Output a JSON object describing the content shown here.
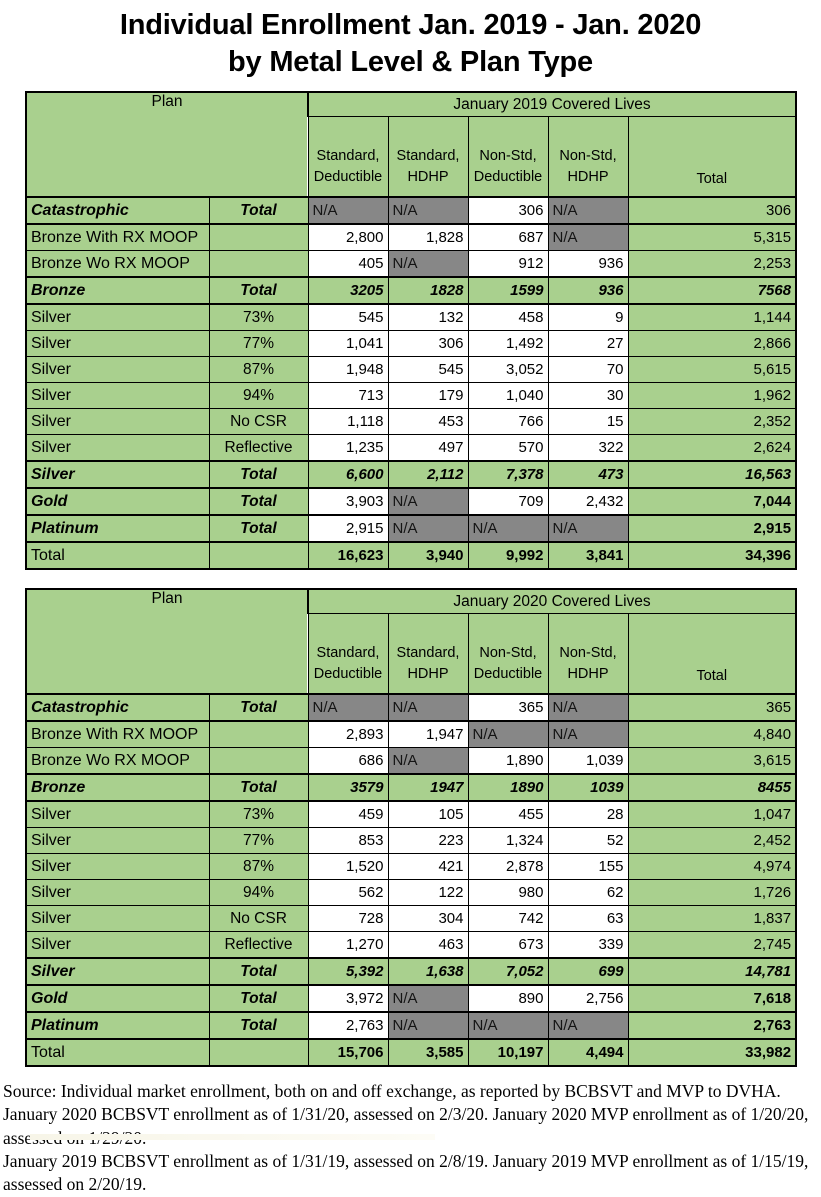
{
  "title": {
    "line1": "Individual Enrollment Jan. 2019 - Jan. 2020",
    "line2": "by Metal Level & Plan Type"
  },
  "colors": {
    "table_green": "#a9d08e",
    "na_gray": "#878787",
    "border": "#000000",
    "page_bg": "#ffffff"
  },
  "tables": [
    {
      "plan_header": "Plan",
      "covered_header": "January 2019 Covered Lives",
      "columns": [
        "Standard, Deductible",
        "Standard, HDHP",
        "Non-Std, Deductible",
        "Non-Std, HDHP",
        "Total"
      ],
      "rows": [
        {
          "name": "Catastrophic",
          "sub": "Total",
          "style": "summary",
          "cells": [
            {
              "v": "N/A",
              "bg": "x"
            },
            {
              "v": "N/A",
              "bg": "x"
            },
            {
              "v": "306",
              "bg": "w"
            },
            {
              "v": "N/A",
              "bg": "x"
            },
            {
              "v": "306",
              "bg": "g"
            }
          ]
        },
        {
          "name": "Bronze With RX MOOP",
          "sub": "",
          "style": "detail",
          "cells": [
            {
              "v": "2,800",
              "bg": "w"
            },
            {
              "v": "1,828",
              "bg": "w"
            },
            {
              "v": "687",
              "bg": "w"
            },
            {
              "v": "N/A",
              "bg": "x"
            },
            {
              "v": "5,315",
              "bg": "g"
            }
          ]
        },
        {
          "name": "Bronze Wo RX MOOP",
          "sub": "",
          "style": "detail",
          "cells": [
            {
              "v": "405",
              "bg": "w"
            },
            {
              "v": "N/A",
              "bg": "x"
            },
            {
              "v": "912",
              "bg": "w"
            },
            {
              "v": "936",
              "bg": "w"
            },
            {
              "v": "2,253",
              "bg": "g"
            }
          ]
        },
        {
          "name": "Bronze",
          "sub": "Total",
          "style": "summary",
          "cells": [
            {
              "v": "3205",
              "bg": "g",
              "fs": "bi"
            },
            {
              "v": "1828",
              "bg": "g",
              "fs": "bi"
            },
            {
              "v": "1599",
              "bg": "g",
              "fs": "bi"
            },
            {
              "v": "936",
              "bg": "g",
              "fs": "bi"
            },
            {
              "v": "7568",
              "bg": "g",
              "fs": "bi"
            }
          ]
        },
        {
          "name": "Silver",
          "sub": "73%",
          "style": "detail",
          "cells": [
            {
              "v": "545",
              "bg": "w"
            },
            {
              "v": "132",
              "bg": "w"
            },
            {
              "v": "458",
              "bg": "w"
            },
            {
              "v": "9",
              "bg": "w"
            },
            {
              "v": "1,144",
              "bg": "g"
            }
          ]
        },
        {
          "name": "Silver",
          "sub": "77%",
          "style": "detail",
          "cells": [
            {
              "v": "1,041",
              "bg": "w"
            },
            {
              "v": "306",
              "bg": "w"
            },
            {
              "v": "1,492",
              "bg": "w"
            },
            {
              "v": "27",
              "bg": "w"
            },
            {
              "v": "2,866",
              "bg": "g"
            }
          ]
        },
        {
          "name": "Silver",
          "sub": "87%",
          "style": "detail",
          "cells": [
            {
              "v": "1,948",
              "bg": "w"
            },
            {
              "v": "545",
              "bg": "w"
            },
            {
              "v": "3,052",
              "bg": "w"
            },
            {
              "v": "70",
              "bg": "w"
            },
            {
              "v": "5,615",
              "bg": "g"
            }
          ]
        },
        {
          "name": "Silver",
          "sub": "94%",
          "style": "detail",
          "cells": [
            {
              "v": "713",
              "bg": "w"
            },
            {
              "v": "179",
              "bg": "w"
            },
            {
              "v": "1,040",
              "bg": "w"
            },
            {
              "v": "30",
              "bg": "w"
            },
            {
              "v": "1,962",
              "bg": "g"
            }
          ]
        },
        {
          "name": "Silver",
          "sub": "No CSR",
          "style": "detail",
          "cells": [
            {
              "v": "1,118",
              "bg": "w"
            },
            {
              "v": "453",
              "bg": "w"
            },
            {
              "v": "766",
              "bg": "w"
            },
            {
              "v": "15",
              "bg": "w"
            },
            {
              "v": "2,352",
              "bg": "g"
            }
          ]
        },
        {
          "name": "Silver",
          "sub": "Reflective",
          "style": "detail",
          "cells": [
            {
              "v": "1,235",
              "bg": "w"
            },
            {
              "v": "497",
              "bg": "w"
            },
            {
              "v": "570",
              "bg": "w"
            },
            {
              "v": "322",
              "bg": "w"
            },
            {
              "v": "2,624",
              "bg": "g"
            }
          ]
        },
        {
          "name": "Silver",
          "sub": "Total",
          "style": "summary",
          "cells": [
            {
              "v": "6,600",
              "bg": "g",
              "fs": "bi"
            },
            {
              "v": "2,112",
              "bg": "g",
              "fs": "bi"
            },
            {
              "v": "7,378",
              "bg": "g",
              "fs": "bi"
            },
            {
              "v": "473",
              "bg": "g",
              "fs": "bi"
            },
            {
              "v": "16,563",
              "bg": "g",
              "fs": "bi"
            }
          ]
        },
        {
          "name": "Gold",
          "sub": "Total",
          "style": "summary",
          "cells": [
            {
              "v": "3,903",
              "bg": "w"
            },
            {
              "v": "N/A",
              "bg": "x"
            },
            {
              "v": "709",
              "bg": "w"
            },
            {
              "v": "2,432",
              "bg": "w"
            },
            {
              "v": "7,044",
              "bg": "g",
              "fs": "b"
            }
          ]
        },
        {
          "name": "Platinum",
          "sub": "Total",
          "style": "summary",
          "cells": [
            {
              "v": "2,915",
              "bg": "w"
            },
            {
              "v": "N/A",
              "bg": "x"
            },
            {
              "v": "N/A",
              "bg": "x"
            },
            {
              "v": "N/A",
              "bg": "x"
            },
            {
              "v": "2,915",
              "bg": "g",
              "fs": "b"
            }
          ]
        },
        {
          "name": "Total",
          "sub": "",
          "style": "grand",
          "cells": [
            {
              "v": "16,623",
              "bg": "g",
              "fs": "b"
            },
            {
              "v": "3,940",
              "bg": "g",
              "fs": "b"
            },
            {
              "v": "9,992",
              "bg": "g",
              "fs": "b"
            },
            {
              "v": "3,841",
              "bg": "g",
              "fs": "b"
            },
            {
              "v": "34,396",
              "bg": "g",
              "fs": "b"
            }
          ]
        }
      ]
    },
    {
      "plan_header": "Plan",
      "covered_header": "January 2020 Covered Lives",
      "columns": [
        "Standard, Deductible",
        "Standard, HDHP",
        "Non-Std, Deductible",
        "Non-Std, HDHP",
        "Total"
      ],
      "rows": [
        {
          "name": "Catastrophic",
          "sub": "Total",
          "style": "summary",
          "cells": [
            {
              "v": "N/A",
              "bg": "x"
            },
            {
              "v": "N/A",
              "bg": "x"
            },
            {
              "v": "365",
              "bg": "w"
            },
            {
              "v": "N/A",
              "bg": "x"
            },
            {
              "v": "365",
              "bg": "g"
            }
          ]
        },
        {
          "name": "Bronze With RX MOOP",
          "sub": "",
          "style": "detail",
          "cells": [
            {
              "v": "2,893",
              "bg": "w"
            },
            {
              "v": "1,947",
              "bg": "w"
            },
            {
              "v": "N/A",
              "bg": "x"
            },
            {
              "v": "N/A",
              "bg": "x"
            },
            {
              "v": "4,840",
              "bg": "g"
            }
          ]
        },
        {
          "name": "Bronze Wo RX MOOP",
          "sub": "",
          "style": "detail",
          "cells": [
            {
              "v": "686",
              "bg": "w"
            },
            {
              "v": "N/A",
              "bg": "x"
            },
            {
              "v": "1,890",
              "bg": "w"
            },
            {
              "v": "1,039",
              "bg": "w"
            },
            {
              "v": "3,615",
              "bg": "g"
            }
          ]
        },
        {
          "name": "Bronze",
          "sub": "Total",
          "style": "summary",
          "cells": [
            {
              "v": "3579",
              "bg": "g",
              "fs": "bi"
            },
            {
              "v": "1947",
              "bg": "g",
              "fs": "bi"
            },
            {
              "v": "1890",
              "bg": "g",
              "fs": "bi"
            },
            {
              "v": "1039",
              "bg": "g",
              "fs": "bi"
            },
            {
              "v": "8455",
              "bg": "g",
              "fs": "bi"
            }
          ]
        },
        {
          "name": "Silver",
          "sub": "73%",
          "style": "detail",
          "cells": [
            {
              "v": "459",
              "bg": "w"
            },
            {
              "v": "105",
              "bg": "w"
            },
            {
              "v": "455",
              "bg": "w"
            },
            {
              "v": "28",
              "bg": "w"
            },
            {
              "v": "1,047",
              "bg": "g"
            }
          ]
        },
        {
          "name": "Silver",
          "sub": "77%",
          "style": "detail",
          "cells": [
            {
              "v": "853",
              "bg": "w"
            },
            {
              "v": "223",
              "bg": "w"
            },
            {
              "v": "1,324",
              "bg": "w"
            },
            {
              "v": "52",
              "bg": "w"
            },
            {
              "v": "2,452",
              "bg": "g"
            }
          ]
        },
        {
          "name": "Silver",
          "sub": "87%",
          "style": "detail",
          "cells": [
            {
              "v": "1,520",
              "bg": "w"
            },
            {
              "v": "421",
              "bg": "w"
            },
            {
              "v": "2,878",
              "bg": "w"
            },
            {
              "v": "155",
              "bg": "w"
            },
            {
              "v": "4,974",
              "bg": "g"
            }
          ]
        },
        {
          "name": "Silver",
          "sub": "94%",
          "style": "detail",
          "cells": [
            {
              "v": "562",
              "bg": "w"
            },
            {
              "v": "122",
              "bg": "w"
            },
            {
              "v": "980",
              "bg": "w"
            },
            {
              "v": "62",
              "bg": "w"
            },
            {
              "v": "1,726",
              "bg": "g"
            }
          ]
        },
        {
          "name": "Silver",
          "sub": "No CSR",
          "style": "detail",
          "cells": [
            {
              "v": "728",
              "bg": "w"
            },
            {
              "v": "304",
              "bg": "w"
            },
            {
              "v": "742",
              "bg": "w"
            },
            {
              "v": "63",
              "bg": "w"
            },
            {
              "v": "1,837",
              "bg": "g"
            }
          ]
        },
        {
          "name": "Silver",
          "sub": "Reflective",
          "style": "detail",
          "cells": [
            {
              "v": "1,270",
              "bg": "w"
            },
            {
              "v": "463",
              "bg": "w"
            },
            {
              "v": "673",
              "bg": "w"
            },
            {
              "v": "339",
              "bg": "w"
            },
            {
              "v": "2,745",
              "bg": "g"
            }
          ]
        },
        {
          "name": "Silver",
          "sub": "Total",
          "style": "summary",
          "cells": [
            {
              "v": "5,392",
              "bg": "g",
              "fs": "bi"
            },
            {
              "v": "1,638",
              "bg": "g",
              "fs": "bi"
            },
            {
              "v": "7,052",
              "bg": "g",
              "fs": "bi"
            },
            {
              "v": "699",
              "bg": "g",
              "fs": "bi"
            },
            {
              "v": "14,781",
              "bg": "g",
              "fs": "bi"
            }
          ]
        },
        {
          "name": "Gold",
          "sub": "Total",
          "style": "summary",
          "cells": [
            {
              "v": "3,972",
              "bg": "w"
            },
            {
              "v": "N/A",
              "bg": "x"
            },
            {
              "v": "890",
              "bg": "w"
            },
            {
              "v": "2,756",
              "bg": "w"
            },
            {
              "v": "7,618",
              "bg": "g",
              "fs": "b"
            }
          ]
        },
        {
          "name": "Platinum",
          "sub": "Total",
          "style": "summary",
          "cells": [
            {
              "v": "2,763",
              "bg": "w"
            },
            {
              "v": "N/A",
              "bg": "x"
            },
            {
              "v": "N/A",
              "bg": "x"
            },
            {
              "v": "N/A",
              "bg": "x"
            },
            {
              "v": "2,763",
              "bg": "g",
              "fs": "b"
            }
          ]
        },
        {
          "name": "Total",
          "sub": "",
          "style": "grand",
          "cells": [
            {
              "v": "15,706",
              "bg": "g",
              "fs": "b"
            },
            {
              "v": "3,585",
              "bg": "g",
              "fs": "b"
            },
            {
              "v": "10,197",
              "bg": "g",
              "fs": "b"
            },
            {
              "v": "4,494",
              "bg": "g",
              "fs": "b"
            },
            {
              "v": "33,982",
              "bg": "g",
              "fs": "b"
            }
          ]
        }
      ]
    }
  ],
  "footer": {
    "lines": [
      "Source: Individual market enrollment, both on and off exchange, as reported by BCBSVT and MVP to DVHA.",
      "January 2020 BCBSVT enrollment as of 1/31/20, assessed on 2/3/20. January 2020 MVP enrollment as of 1/20/20, assessed on 1/29/20.",
      "January 2019 BCBSVT enrollment as of 1/31/19, assessed on 2/8/19. January 2019 MVP enrollment as of 1/15/19, assessed on 2/20/19."
    ]
  }
}
